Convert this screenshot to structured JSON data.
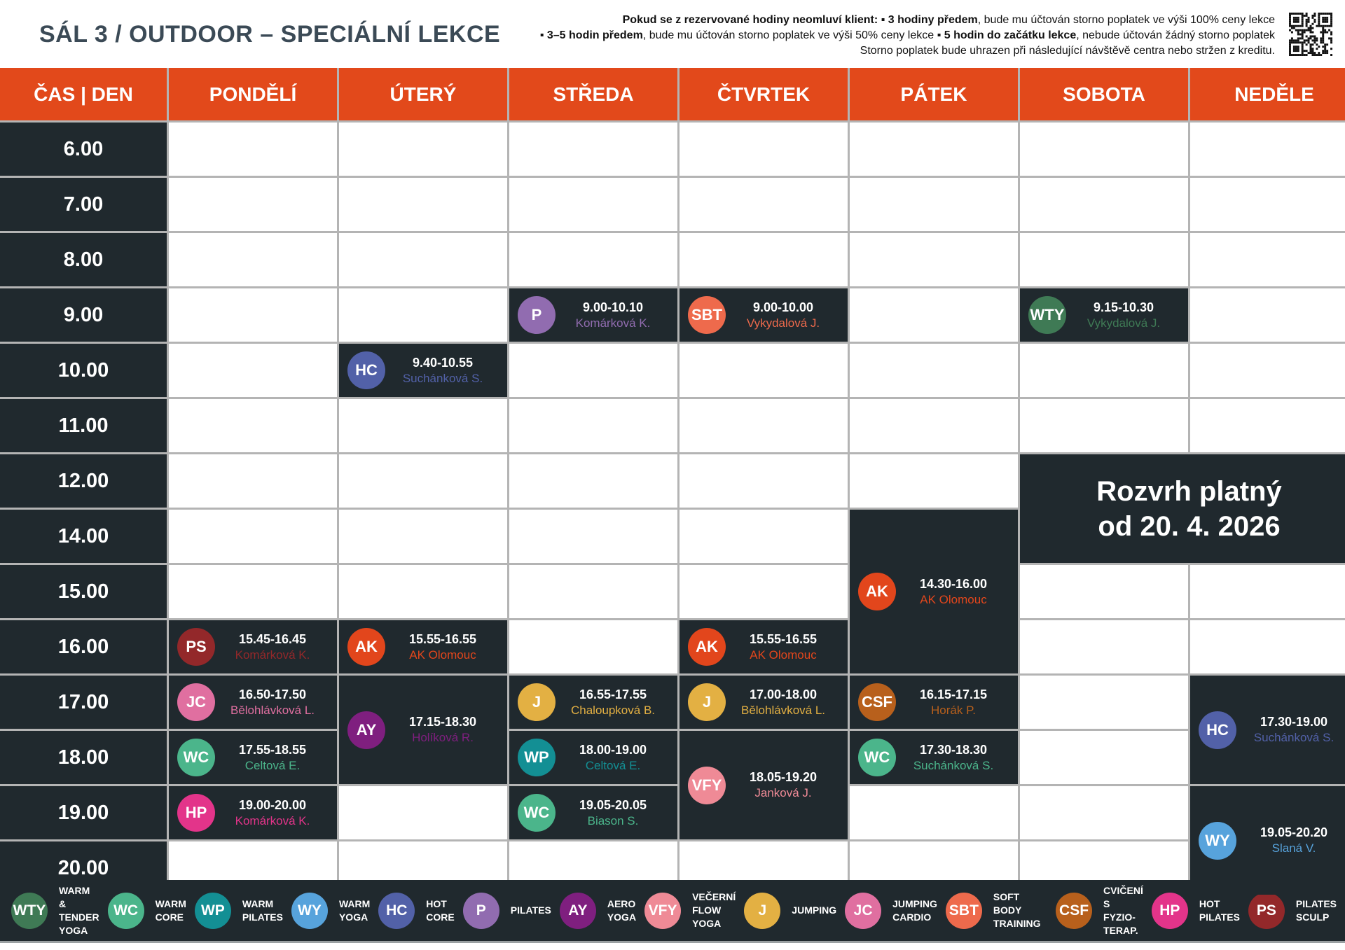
{
  "title": "SÁL 3 / OUTDOOR – SPECIÁLNÍ LEKCE",
  "notice": [
    [
      {
        "b": true,
        "t": "Pokud se z rezervované hodiny neomluví klient: "
      },
      {
        "b": true,
        "t": "▪ 3 hodiny předem"
      },
      {
        "b": false,
        "t": ", bude mu účtován storno poplatek ve výši 100% ceny lekce"
      }
    ],
    [
      {
        "b": true,
        "t": "▪ 3–5 hodin předem"
      },
      {
        "b": false,
        "t": ", bude mu účtován storno poplatek ve výši 50% ceny lekce "
      },
      {
        "b": true,
        "t": "▪ 5 hodin do začátku lekce"
      },
      {
        "b": false,
        "t": ", nebude účtován žádný storno poplatek"
      }
    ],
    [
      {
        "b": false,
        "t": "Storno poplatek bude uhrazen při následující návštěvě centra nebo stržen z kreditu."
      }
    ]
  ],
  "corner_header": "ČAS | DEN",
  "days": [
    "PONDĚLÍ",
    "ÚTERÝ",
    "STŘEDA",
    "ČTVRTEK",
    "PÁTEK",
    "SOBOTA",
    "NEDĚLE"
  ],
  "times": [
    "6.00",
    "7.00",
    "8.00",
    "9.00",
    "10.00",
    "11.00",
    "12.00",
    "14.00",
    "15.00",
    "16.00",
    "17.00",
    "18.00",
    "19.00",
    "20.00"
  ],
  "colors": {
    "header": "#e2491b",
    "dark": "#20292e",
    "WTY": "#3f7a55",
    "WC": "#4bb58b",
    "WP": "#138f94",
    "WY": "#57a3dc",
    "HC": "#5261a8",
    "P": "#916cb0",
    "AY": "#7f1f7f",
    "VFY": "#ef8a96",
    "J": "#e3b043",
    "JC": "#e06fa0",
    "SBT": "#ee6a4c",
    "CSF": "#b8601c",
    "HP": "#e3348a",
    "PS": "#93282a",
    "AK": "#e2461c"
  },
  "validity_notice": {
    "text": "Rozvrh platný\nod 20. 4. 2026",
    "day_start": 6,
    "day_span": 2,
    "time": "12.00",
    "slots": 2
  },
  "events": [
    {
      "code": "P",
      "day": "STŘEDA",
      "start_slot": "9.00",
      "slots": 1,
      "time": "9.00-10.10",
      "instructor": "Komárková K."
    },
    {
      "code": "SBT",
      "day": "ČTVRTEK",
      "start_slot": "9.00",
      "slots": 1,
      "time": "9.00-10.00",
      "instructor": "Vykydalová J."
    },
    {
      "code": "WTY",
      "day": "SOBOTA",
      "start_slot": "9.00",
      "slots": 1,
      "time": "9.15-10.30",
      "instructor": "Vykydalová J."
    },
    {
      "code": "HC",
      "day": "ÚTERÝ",
      "start_slot": "10.00",
      "slots": 1,
      "time": "9.40-10.55",
      "instructor": "Suchánková S."
    },
    {
      "code": "AK",
      "day": "PÁTEK",
      "start_slot": "14.00",
      "slots": 3,
      "time": "14.30-16.00",
      "instructor": "AK Olomouc"
    },
    {
      "code": "PS",
      "day": "PONDĚLÍ",
      "start_slot": "16.00",
      "slots": 1,
      "time": "15.45-16.45",
      "instructor": "Komárková K."
    },
    {
      "code": "AK",
      "day": "ÚTERÝ",
      "start_slot": "16.00",
      "slots": 1,
      "time": "15.55-16.55",
      "instructor": "AK Olomouc"
    },
    {
      "code": "AK",
      "day": "ČTVRTEK",
      "start_slot": "16.00",
      "slots": 1,
      "time": "15.55-16.55",
      "instructor": "AK Olomouc"
    },
    {
      "code": "JC",
      "day": "PONDĚLÍ",
      "start_slot": "17.00",
      "slots": 1,
      "time": "16.50-17.50",
      "instructor": "Bělohlávková L."
    },
    {
      "code": "AY",
      "day": "ÚTERÝ",
      "start_slot": "17.00",
      "slots": 2,
      "time": "17.15-18.30",
      "instructor": "Holíková R."
    },
    {
      "code": "J",
      "day": "STŘEDA",
      "start_slot": "17.00",
      "slots": 1,
      "time": "16.55-17.55",
      "instructor": "Chaloupková B."
    },
    {
      "code": "J",
      "day": "ČTVRTEK",
      "start_slot": "17.00",
      "slots": 1,
      "time": "17.00-18.00",
      "instructor": "Bělohlávková L."
    },
    {
      "code": "CSF",
      "day": "PÁTEK",
      "start_slot": "17.00",
      "slots": 1,
      "time": "16.15-17.15",
      "instructor": "Horák P."
    },
    {
      "code": "HC",
      "day": "NEDĚLE",
      "start_slot": "17.00",
      "slots": 2,
      "time": "17.30-19.00",
      "instructor": "Suchánková S."
    },
    {
      "code": "WC",
      "day": "PONDĚLÍ",
      "start_slot": "18.00",
      "slots": 1,
      "time": "17.55-18.55",
      "instructor": "Celtová E."
    },
    {
      "code": "WP",
      "day": "STŘEDA",
      "start_slot": "18.00",
      "slots": 1,
      "time": "18.00-19.00",
      "instructor": "Celtová E."
    },
    {
      "code": "VFY",
      "day": "ČTVRTEK",
      "start_slot": "18.00",
      "slots": 2,
      "time": "18.05-19.20",
      "instructor": "Janková J."
    },
    {
      "code": "WC",
      "day": "PÁTEK",
      "start_slot": "18.00",
      "slots": 1,
      "time": "17.30-18.30",
      "instructor": "Suchánková S."
    },
    {
      "code": "HP",
      "day": "PONDĚLÍ",
      "start_slot": "19.00",
      "slots": 1,
      "time": "19.00-20.00",
      "instructor": "Komárková K."
    },
    {
      "code": "WC",
      "day": "STŘEDA",
      "start_slot": "19.00",
      "slots": 1,
      "time": "19.05-20.05",
      "instructor": "Biason S."
    },
    {
      "code": "WY",
      "day": "NEDĚLE",
      "start_slot": "19.00",
      "slots": 2,
      "time": "19.05-20.20",
      "instructor": "Slaná V."
    }
  ],
  "legend": [
    {
      "code": "WTY",
      "label": "WARM &\nTENDER\nYOGA"
    },
    {
      "code": "WC",
      "label": "WARM\nCORE"
    },
    {
      "code": "WP",
      "label": "WARM\nPILATES"
    },
    {
      "code": "WY",
      "label": "WARM\nYOGA"
    },
    {
      "code": "HC",
      "label": "HOT\nCORE"
    },
    {
      "code": "P",
      "label": "PILATES"
    },
    {
      "code": "AY",
      "label": "AERO\nYOGA"
    },
    {
      "code": "VFY",
      "label": "VEČERNÍ\nFLOW\nYOGA"
    },
    {
      "code": "J",
      "label": "JUMPING"
    },
    {
      "code": "JC",
      "label": "JUMPING\nCARDIO"
    },
    {
      "code": "SBT",
      "label": "SOFT BODY\nTRAINING"
    },
    {
      "code": "CSF",
      "label": "CVIČENÍ\nS FYZIO-\nTERAP."
    },
    {
      "code": "HP",
      "label": "HOT\nPILATES"
    },
    {
      "code": "PS",
      "label": "PILATES\nSCULP"
    }
  ]
}
